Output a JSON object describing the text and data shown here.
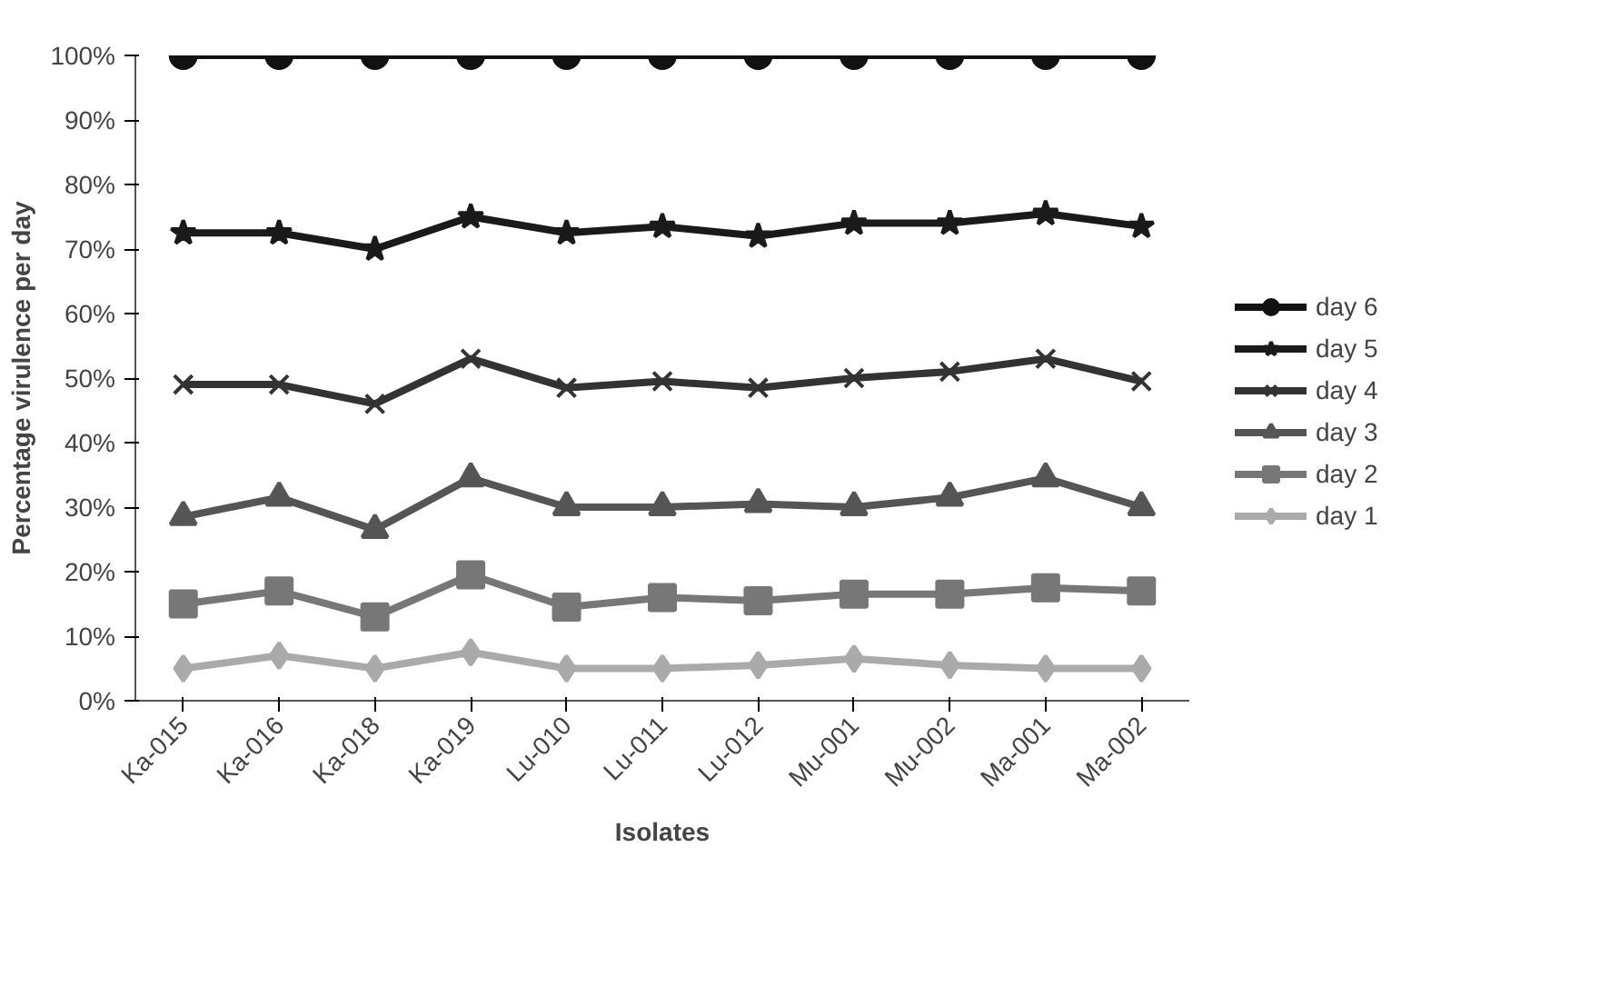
{
  "chart_data": {
    "type": "line",
    "xlabel": "Isolates",
    "ylabel": "Percentage virulence per day",
    "categories": [
      "Ka-015",
      "Ka-016",
      "Ka-018",
      "Ka-019",
      "Lu-010",
      "Lu-011",
      "Lu-012",
      "Mu-001",
      "Mu-002",
      "Ma-001",
      "Ma-002"
    ],
    "ylim": [
      0,
      100
    ],
    "yticks": [
      {
        "value": 0,
        "label": "0%"
      },
      {
        "value": 10,
        "label": "10%"
      },
      {
        "value": 20,
        "label": "20%"
      },
      {
        "value": 30,
        "label": "30%"
      },
      {
        "value": 40,
        "label": "40%"
      },
      {
        "value": 50,
        "label": "50%"
      },
      {
        "value": 60,
        "label": "60%"
      },
      {
        "value": 70,
        "label": "70%"
      },
      {
        "value": 80,
        "label": "80%"
      },
      {
        "value": 90,
        "label": "90%"
      },
      {
        "value": 100,
        "label": "100%"
      }
    ],
    "grid": false,
    "legend": "right",
    "series": [
      {
        "name": "day 6",
        "color": "#111111",
        "marker": "circle",
        "values": [
          100,
          100,
          100,
          100,
          100,
          100,
          100,
          100,
          100,
          100,
          100
        ]
      },
      {
        "name": "day 5",
        "color": "#1a1a1a",
        "marker": "star",
        "values": [
          72.5,
          72.5,
          70,
          75,
          72.5,
          73.5,
          72,
          74,
          74,
          75.5,
          73.5
        ]
      },
      {
        "name": "day 4",
        "color": "#333333",
        "marker": "cross",
        "values": [
          49,
          49,
          46,
          53,
          48.5,
          49.5,
          48.5,
          50,
          51,
          53,
          49.5
        ]
      },
      {
        "name": "day 3",
        "color": "#555555",
        "marker": "triangle",
        "values": [
          28.5,
          31.5,
          26.5,
          34.5,
          30,
          30,
          30.5,
          30,
          31.5,
          34.5,
          30
        ]
      },
      {
        "name": "day 2",
        "color": "#777777",
        "marker": "square",
        "values": [
          15,
          17,
          13,
          19.5,
          14.5,
          16,
          15.5,
          16.5,
          16.5,
          17.5,
          17
        ]
      },
      {
        "name": "day 1",
        "color": "#aaaaaa",
        "marker": "diamond",
        "values": [
          5,
          7,
          5,
          7.5,
          5,
          5,
          5.5,
          6.5,
          5.5,
          5,
          5
        ]
      }
    ]
  }
}
